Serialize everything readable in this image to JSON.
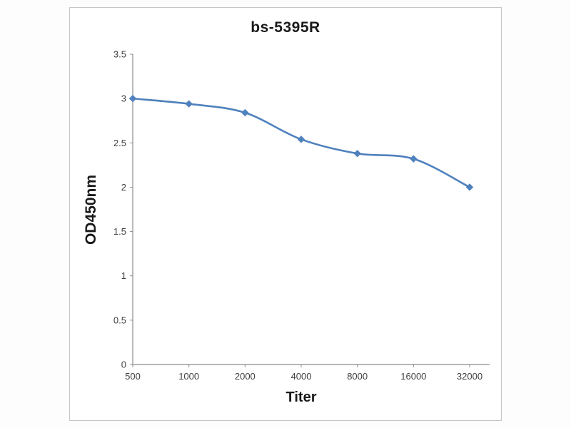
{
  "window": {
    "background_color": "#fdfdfd",
    "panel_background": "#ffffff",
    "panel_border_color": "#c6c6c6"
  },
  "chart_data": {
    "type": "line",
    "title": "bs-5395R",
    "xlabel": "Titer",
    "ylabel": "OD450nm",
    "categories": [
      "500",
      "1000",
      "2000",
      "4000",
      "8000",
      "16000",
      "32000"
    ],
    "series": [
      {
        "name": "OD450nm",
        "values": [
          3.0,
          2.94,
          2.84,
          2.54,
          2.38,
          2.32,
          2.0
        ]
      }
    ],
    "ylim": [
      0,
      3.5
    ],
    "ytick_step": 0.5,
    "ytick_labels": [
      "0",
      "0.5",
      "1",
      "1.5",
      "2",
      "2.5",
      "3",
      "3.5"
    ],
    "grid": false,
    "legend": "none",
    "line_color": "#4f81bd",
    "marker": "diamond",
    "marker_color": "#4f81bd",
    "axis_color": "#8c8c8c",
    "tick_text_color": "#3f3f3f"
  }
}
